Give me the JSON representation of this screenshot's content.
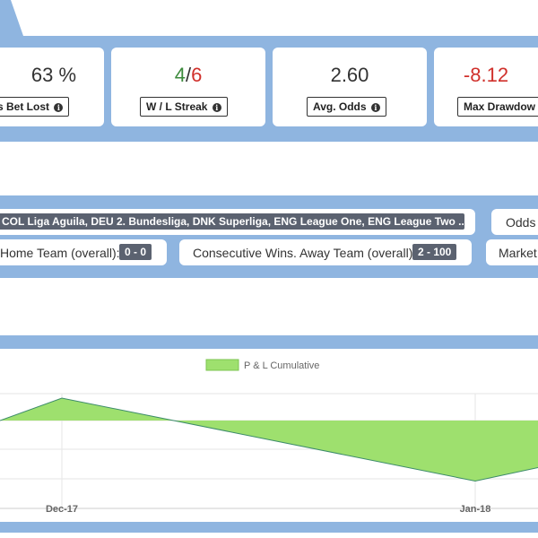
{
  "stats": [
    {
      "value": "63 %",
      "label": "s Bet Lost"
    },
    {
      "value_won": "4",
      "value_sep": "/",
      "value_lost": "6",
      "label": "W / L Streak"
    },
    {
      "value": "2.60",
      "label": "Avg. Odds"
    },
    {
      "value": "-8.12",
      "label": "Max Drawdow"
    }
  ],
  "filters": {
    "leagues": "COL Liga Aguila, DEU 2. Bundesliga, DNK Superliga, ENG League One, ENG League Two ...",
    "odds_label": "Odds I",
    "home_label": "Home Team (overall):",
    "home_value": "0 - 0",
    "away_label": "Consecutive Wins. Away Team (overall):",
    "away_value": "2 - 100",
    "market_label": "Market"
  },
  "colors": {
    "band": "#8fb5e0",
    "positive": "#3c8a3c",
    "negative": "#d0302b",
    "pill": "#5b6270",
    "area_fill": "#9ee06e",
    "area_line": "#3d8c6a"
  },
  "chart_data": {
    "type": "area",
    "title": "",
    "xlabel": "",
    "ylabel": "",
    "legend": {
      "position": "top-center",
      "entries": [
        "P & L Cumulative"
      ]
    },
    "x_ticks": [
      "Dec-17",
      "Jan-18"
    ],
    "grid": true,
    "series": [
      {
        "name": "P & L Cumulative",
        "color": "#9ee06e",
        "values": [
          0.0,
          1.0,
          -2.7,
          -2.1
        ]
      }
    ],
    "baseline": 0
  }
}
